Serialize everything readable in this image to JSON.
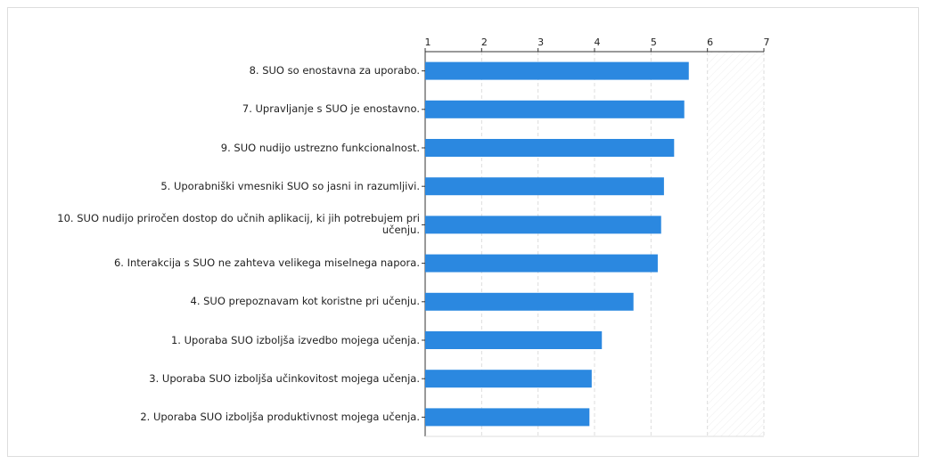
{
  "chart_data": {
    "type": "bar",
    "orientation": "horizontal",
    "categories": [
      "8. SUO so enostavna za uporabo.",
      "7. Upravljanje s SUO je enostavno.",
      "9. SUO nudijo ustrezno funkcionalnost.",
      "5. Uporabniški vmesniki SUO so jasni in razumljivi.",
      "10. SUO nudijo priročen dostop do učnih aplikacij, ki jih potrebujem pri učenju.",
      "6. Interakcija s SUO ne zahteva velikega miselnega napora.",
      "4. SUO prepoznavam kot koristne pri učenju.",
      "1. Uporaba SUO izboljša izvedbo mojega učenja.",
      "3. Uporaba SUO izboljša učinkovitost mojega učenja.",
      "2. Uporaba SUO izboljša produktivnost mojega učenja."
    ],
    "values": [
      5.67,
      5.59,
      5.41,
      5.23,
      5.18,
      5.12,
      4.69,
      4.13,
      3.95,
      3.91
    ],
    "color": "#2b88e0",
    "xlim": [
      1,
      7
    ],
    "xticks": [
      1,
      2,
      3,
      4,
      5,
      6,
      7
    ],
    "grid": true
  }
}
